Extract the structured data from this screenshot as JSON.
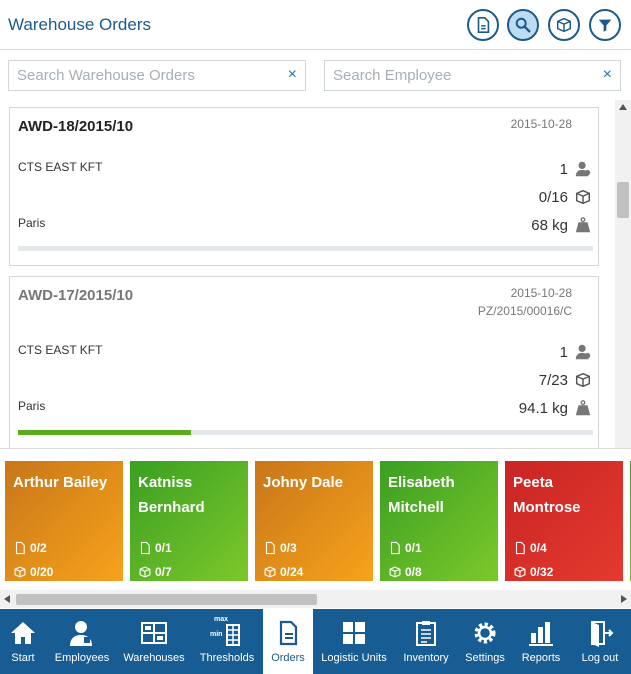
{
  "header": {
    "title": "Warehouse Orders",
    "buttons": [
      {
        "icon": "document-icon"
      },
      {
        "icon": "search-icon"
      },
      {
        "icon": "box-icon"
      },
      {
        "icon": "filter-icon"
      }
    ]
  },
  "search": {
    "orders_placeholder": "Search Warehouse Orders",
    "employee_placeholder": "Search Employee",
    "clear_symbol": "×"
  },
  "orders": [
    {
      "code": "AWD-18/2015/10",
      "date": "2015-10-28",
      "ref": "",
      "company": "CTS EAST KFT",
      "city": "Paris",
      "employees": "1",
      "units": "0/16",
      "weight": "68 kg",
      "progress": 0
    },
    {
      "code": "AWD-17/2015/10",
      "date": "2015-10-28",
      "ref": "PZ/2015/00016/C",
      "company": "CTS EAST KFT",
      "city": "Paris",
      "employees": "1",
      "units": "7/23",
      "weight": "94.1 kg",
      "progress": 0.3
    }
  ],
  "employees": [
    {
      "name": "Arthur Bailey",
      "docs": "0/2",
      "boxes": "0/20",
      "color": "orange"
    },
    {
      "name": "Katniss Bernhard",
      "docs": "0/1",
      "boxes": "0/7",
      "color": "green"
    },
    {
      "name": "Johny Dale",
      "docs": "0/3",
      "boxes": "0/24",
      "color": "orange"
    },
    {
      "name": "Elisabeth Mitchell",
      "docs": "0/1",
      "boxes": "0/8",
      "color": "green"
    },
    {
      "name": "Peeta Montrose",
      "docs": "0/4",
      "boxes": "0/32",
      "color": "red"
    }
  ],
  "nav": [
    {
      "label": "Start",
      "icon": "home-icon"
    },
    {
      "label": "Employees",
      "icon": "user-icon"
    },
    {
      "label": "Warehouses",
      "icon": "warehouse-icon"
    },
    {
      "label": "Thresholds",
      "icon": "thresholds-icon"
    },
    {
      "label": "Orders",
      "icon": "document-icon",
      "active": true
    },
    {
      "label": "Logistic Units",
      "icon": "grid-icon"
    },
    {
      "label": "Inventory",
      "icon": "clipboard-icon"
    },
    {
      "label": "Settings",
      "icon": "gear-icon"
    },
    {
      "label": "Reports",
      "icon": "bar-chart-icon"
    },
    {
      "label": "Log out",
      "icon": "logout-icon"
    }
  ],
  "threshold_labels": {
    "max": "max",
    "min": "min"
  },
  "colors": {
    "brand": "#1d5a8c",
    "nav_bg": "#175d93",
    "progress": "#5aac1e",
    "orange": "#f7a31b",
    "green": "#6cbf28",
    "red": "#d92a27"
  }
}
